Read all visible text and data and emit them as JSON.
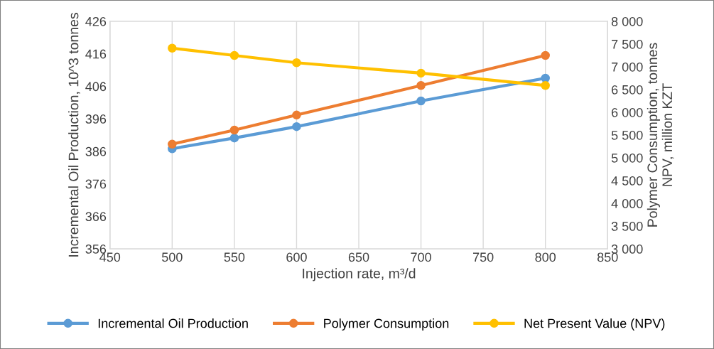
{
  "chart_data": {
    "type": "line",
    "xlabel": "Injection rate, m³/d",
    "ylabel": "Incremental Oil Production, 10^3 tonnes",
    "y2label": "Polymer Consumption, tonnes\nNPV, million KZT",
    "x": [
      500,
      550,
      600,
      700,
      800
    ],
    "series": [
      {
        "name": "Incremental Oil Production",
        "color": "#5b9bd5",
        "values": [
          386.8,
          390.1,
          393.6,
          401.5,
          408.5
        ]
      },
      {
        "name": "Polymer Consumption",
        "color": "#ed7d31",
        "axis": "y2",
        "values": [
          5300,
          5610,
          5940,
          6590,
          7250
        ]
      },
      {
        "name": "Net Present Value (NPV)",
        "color": "#ffc000",
        "axis": "y2",
        "values": [
          7410,
          7250,
          7090,
          6860,
          6590
        ]
      }
    ],
    "xlim": [
      450,
      850
    ],
    "xticks": [
      450,
      500,
      550,
      600,
      650,
      700,
      750,
      800,
      850
    ],
    "ylim": [
      356,
      426
    ],
    "yticks": [
      356,
      366,
      376,
      386,
      396,
      406,
      416,
      426
    ],
    "y2lim": [
      3000,
      8000
    ],
    "y2ticks": [
      {
        "value": 3000,
        "label": "3 000"
      },
      {
        "value": 3500,
        "label": "3 500"
      },
      {
        "value": 4000,
        "label": "4 000"
      },
      {
        "value": 4500,
        "label": "4 500"
      },
      {
        "value": 5000,
        "label": "5 000"
      },
      {
        "value": 5500,
        "label": "5 500"
      },
      {
        "value": 6000,
        "label": "6 000"
      },
      {
        "value": 6500,
        "label": "6 500"
      },
      {
        "value": 7000,
        "label": "7 000"
      },
      {
        "value": 7500,
        "label": "7 500"
      },
      {
        "value": 8000,
        "label": "8 000"
      }
    ],
    "grid": "x",
    "legend": "bottom",
    "marker": "circle",
    "line_style": "solid"
  }
}
